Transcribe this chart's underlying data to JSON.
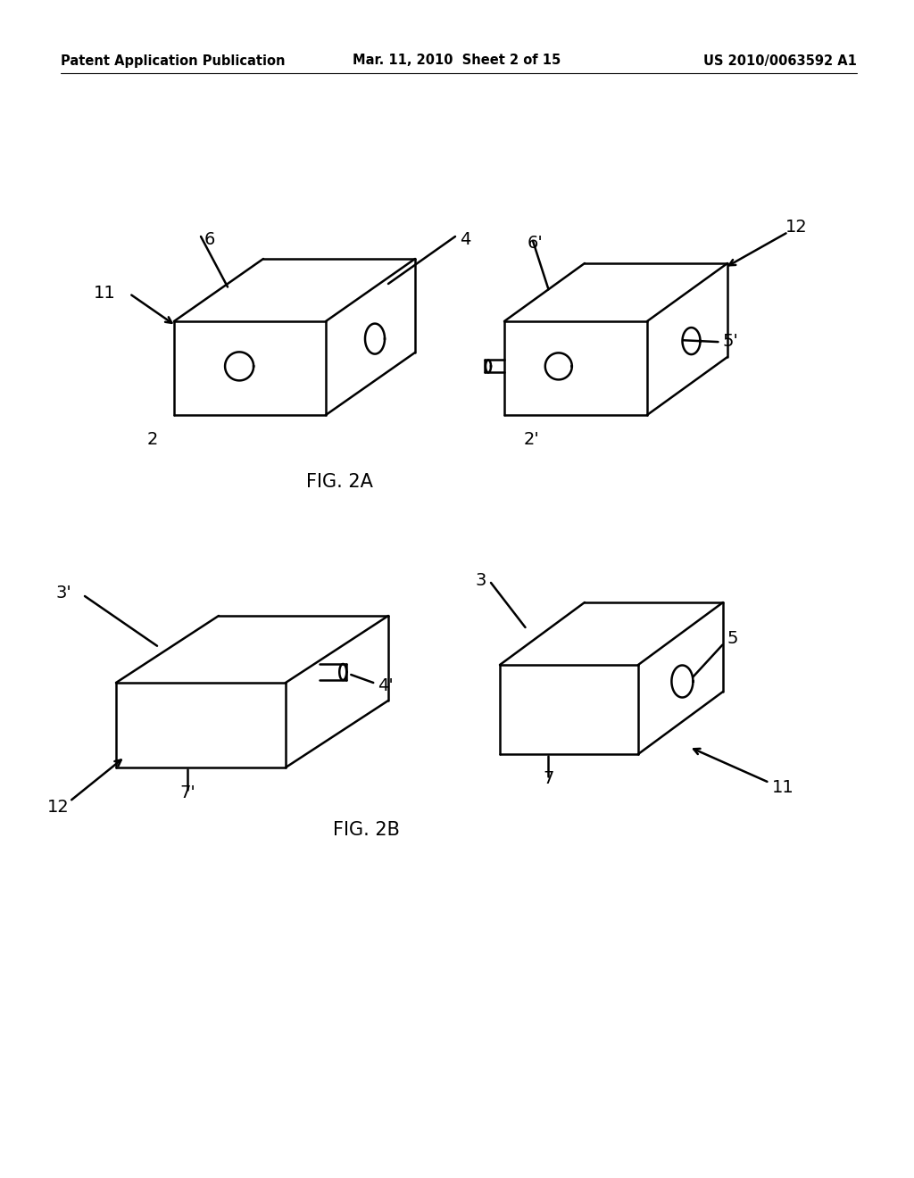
{
  "background_color": "#ffffff",
  "header_left": "Patent Application Publication",
  "header_mid": "Mar. 11, 2010  Sheet 2 of 15",
  "header_right": "US 2010/0063592 A1",
  "header_fontsize": 10.5,
  "fig_label_2a": "FIG. 2A",
  "fig_label_2b": "FIG. 2B",
  "line_color": "#000000",
  "line_width": 1.8,
  "label_fontsize": 14
}
